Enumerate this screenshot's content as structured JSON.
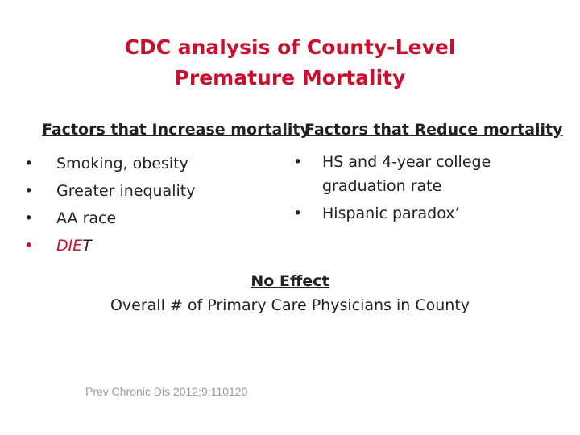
{
  "title": {
    "line1": "CDC analysis of County-Level",
    "line2": "Premature Mortality"
  },
  "increase": {
    "heading": "Factors that Increase mortality",
    "items": [
      "Smoking, obesity",
      "Greater inequality",
      "AA race"
    ],
    "diet_red": "DIE",
    "diet_dark": "T"
  },
  "reduce": {
    "heading": "Factors that Reduce mortality",
    "items": [
      "HS and 4-year college",
      "Hispanic paradox’"
    ],
    "item1_cont": "graduation rate"
  },
  "no_effect": {
    "heading": "No Effect",
    "text": "Overall  # of Primary Care Physicians in County"
  },
  "citation": "Prev Chronic Dis 2012;9:110120",
  "bullet": "•",
  "colors": {
    "title": "#c8102e",
    "text": "#222222",
    "citation": "#9a9a9a"
  }
}
